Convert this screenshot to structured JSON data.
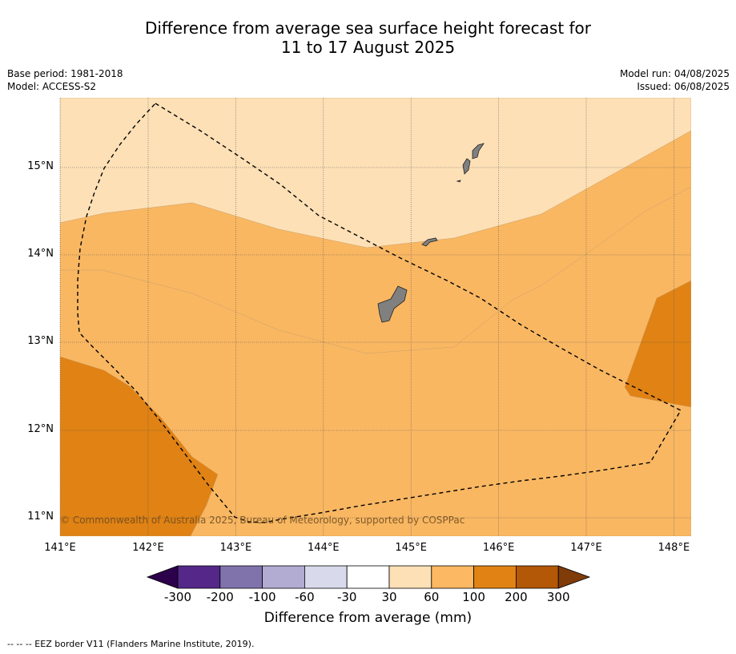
{
  "title_line1": "Difference from average sea surface height forecast for",
  "title_line2": "11 to 17 August 2025",
  "left_meta": {
    "base_period": "Base period: 1981-2018",
    "model": "Model: ACCESS-S2"
  },
  "right_meta": {
    "model_run": "Model run: 04/08/2025",
    "issued": "Issued: 06/08/2025"
  },
  "copyright": "© Commonwealth of Australia 2025, Bureau of Meteorology, supported by COSPPac",
  "lon_ticks": [
    "141°E",
    "142°E",
    "143°E",
    "144°E",
    "145°E",
    "146°E",
    "147°E",
    "148°E"
  ],
  "lat_ticks": [
    "15°N",
    "14°N",
    "13°N",
    "12°N",
    "11°N"
  ],
  "colorbar": {
    "labels": [
      "-300",
      "-200",
      "-100",
      "-60",
      "-30",
      "30",
      "60",
      "100",
      "200",
      "300"
    ],
    "colors": [
      "#542788",
      "#8073ac",
      "#b2abd2",
      "#d8daeb",
      "#ffffff",
      "#fee0b6",
      "#fdb863",
      "#e08214",
      "#b35806"
    ],
    "under_color": "#2d004b",
    "over_color": "#7f3b08",
    "title": "Difference from average (mm)"
  },
  "footnote": "--  --  -- EEZ border V11 (Flanders Marine Institute, 2019).",
  "map_fill_colors": {
    "band_30_60": "#fde0b6",
    "band_60_100": "#f9b762",
    "band_100_200": "#e08214",
    "land": "#808080"
  }
}
